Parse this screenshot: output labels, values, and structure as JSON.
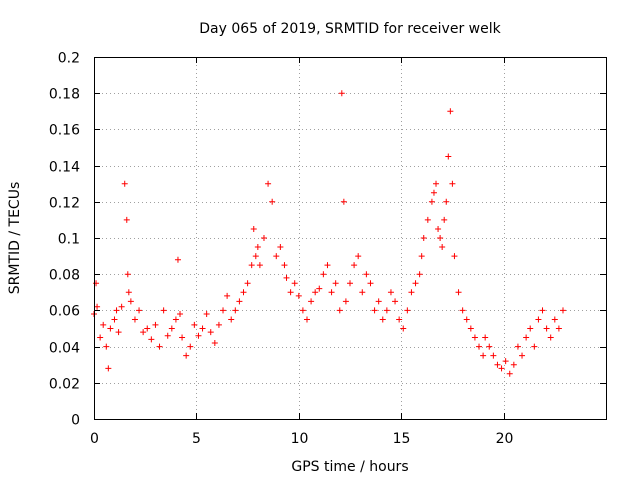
{
  "chart_data": {
    "type": "scatter",
    "title": "Day 065 of 2019, SRMTID for receiver welk",
    "xlabel": "GPS time / hours",
    "ylabel": "SRMTID / TECUs",
    "xlim": [
      0,
      25
    ],
    "ylim": [
      0,
      0.2
    ],
    "x_ticks": [
      "0",
      "5",
      "10",
      "15",
      "20"
    ],
    "y_ticks": [
      "0",
      "0.02",
      "0.04",
      "0.06",
      "0.08",
      "0.1",
      "0.12",
      "0.14",
      "0.16",
      "0.18",
      "0.2"
    ],
    "grid": true,
    "marker": "plus",
    "series": [
      {
        "color": "#ff0000",
        "x": [
          0.0,
          0.1,
          0.15,
          0.3,
          0.45,
          0.6,
          0.7,
          0.8,
          1.0,
          1.1,
          1.2,
          1.35,
          1.5,
          1.6,
          1.65,
          1.7,
          1.8,
          2.0,
          2.2,
          2.4,
          2.6,
          2.8,
          3.0,
          3.2,
          3.4,
          3.6,
          3.8,
          4.0,
          4.1,
          4.2,
          4.3,
          4.5,
          4.7,
          4.9,
          5.1,
          5.3,
          5.5,
          5.7,
          5.9,
          6.1,
          6.3,
          6.5,
          6.7,
          6.9,
          7.1,
          7.3,
          7.5,
          7.7,
          7.8,
          7.9,
          8.0,
          8.1,
          8.3,
          8.5,
          8.7,
          8.9,
          9.1,
          9.3,
          9.4,
          9.6,
          9.8,
          10.0,
          10.2,
          10.4,
          10.6,
          10.8,
          11.0,
          11.2,
          11.4,
          11.6,
          11.8,
          12.0,
          12.1,
          12.2,
          12.3,
          12.5,
          12.7,
          12.9,
          13.1,
          13.3,
          13.5,
          13.7,
          13.9,
          14.1,
          14.3,
          14.5,
          14.7,
          14.9,
          15.1,
          15.3,
          15.5,
          15.7,
          15.9,
          16.0,
          16.1,
          16.3,
          16.5,
          16.6,
          16.7,
          16.8,
          16.9,
          17.0,
          17.1,
          17.2,
          17.3,
          17.4,
          17.5,
          17.6,
          17.8,
          18.0,
          18.2,
          18.4,
          18.6,
          18.8,
          19.0,
          19.1,
          19.3,
          19.5,
          19.7,
          19.9,
          20.1,
          20.3,
          20.5,
          20.7,
          20.9,
          21.1,
          21.3,
          21.5,
          21.7,
          21.9,
          22.1,
          22.3,
          22.5,
          22.7,
          22.9
        ],
        "y": [
          0.058,
          0.075,
          0.062,
          0.045,
          0.052,
          0.04,
          0.028,
          0.05,
          0.055,
          0.06,
          0.048,
          0.062,
          0.13,
          0.11,
          0.08,
          0.07,
          0.065,
          0.055,
          0.06,
          0.048,
          0.05,
          0.044,
          0.052,
          0.04,
          0.06,
          0.046,
          0.05,
          0.055,
          0.088,
          0.058,
          0.045,
          0.035,
          0.04,
          0.052,
          0.046,
          0.05,
          0.058,
          0.048,
          0.042,
          0.052,
          0.06,
          0.068,
          0.055,
          0.06,
          0.065,
          0.07,
          0.075,
          0.085,
          0.105,
          0.09,
          0.095,
          0.085,
          0.1,
          0.13,
          0.12,
          0.09,
          0.095,
          0.085,
          0.078,
          0.07,
          0.075,
          0.068,
          0.06,
          0.055,
          0.065,
          0.07,
          0.072,
          0.08,
          0.085,
          0.07,
          0.075,
          0.06,
          0.18,
          0.12,
          0.065,
          0.075,
          0.085,
          0.09,
          0.07,
          0.08,
          0.075,
          0.06,
          0.065,
          0.055,
          0.06,
          0.07,
          0.065,
          0.055,
          0.05,
          0.06,
          0.07,
          0.075,
          0.08,
          0.09,
          0.1,
          0.11,
          0.12,
          0.125,
          0.13,
          0.105,
          0.1,
          0.095,
          0.11,
          0.12,
          0.145,
          0.17,
          0.13,
          0.09,
          0.07,
          0.06,
          0.055,
          0.05,
          0.045,
          0.04,
          0.035,
          0.045,
          0.04,
          0.035,
          0.03,
          0.028,
          0.032,
          0.025,
          0.03,
          0.04,
          0.035,
          0.045,
          0.05,
          0.04,
          0.055,
          0.06,
          0.05,
          0.045,
          0.055,
          0.05,
          0.06
        ]
      }
    ]
  }
}
